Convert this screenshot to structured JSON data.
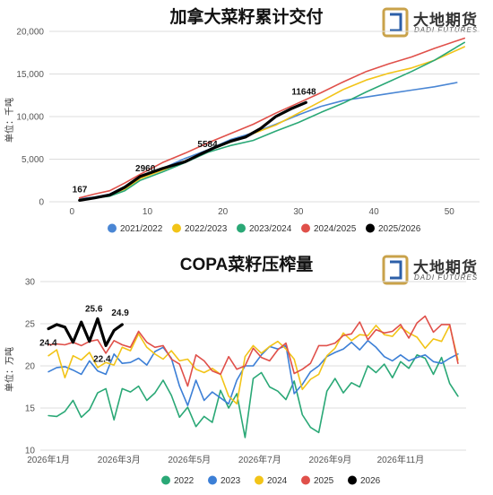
{
  "logo": {
    "name": "大地期货",
    "sub": "DADI FUTURES"
  },
  "chart_data": [
    {
      "id": "top",
      "type": "line",
      "title": "加拿大菜籽累计交付",
      "ylabel": "单位：千吨",
      "xlim": [
        -3,
        54
      ],
      "ylim": [
        0,
        20000
      ],
      "xticks": [
        0,
        10,
        20,
        30,
        40,
        50
      ],
      "yticks": [
        0,
        5000,
        10000,
        15000,
        20000
      ],
      "yticklabels": [
        "0",
        "5,000",
        "10,000",
        "15,000",
        "20,000"
      ],
      "grid": true,
      "legend_position": "bottom",
      "series": [
        {
          "name": "2021/2022",
          "color": "#4a86d4",
          "width": 1.6,
          "x": [
            1,
            3,
            5,
            7,
            9,
            12,
            15,
            18,
            21,
            24,
            27,
            30,
            33,
            36,
            39,
            42,
            45,
            48,
            51
          ],
          "y": [
            350,
            550,
            900,
            1800,
            2900,
            3900,
            5100,
            6100,
            7300,
            8100,
            9100,
            10200,
            11200,
            11900,
            12300,
            12700,
            13100,
            13500,
            14000
          ]
        },
        {
          "name": "2022/2023",
          "color": "#f2c418",
          "width": 1.6,
          "x": [
            1,
            3,
            5,
            7,
            9,
            12,
            15,
            18,
            21,
            24,
            27,
            30,
            33,
            36,
            39,
            42,
            45,
            48,
            52
          ],
          "y": [
            250,
            500,
            750,
            1500,
            2700,
            3700,
            4800,
            6000,
            7000,
            8000,
            9000,
            10400,
            11800,
            13200,
            14300,
            15100,
            15700,
            16600,
            18200
          ]
        },
        {
          "name": "2023/2024",
          "color": "#2aa876",
          "width": 1.6,
          "x": [
            1,
            3,
            5,
            7,
            9,
            12,
            15,
            18,
            21,
            24,
            27,
            30,
            33,
            36,
            39,
            42,
            45,
            48,
            52
          ],
          "y": [
            250,
            450,
            650,
            1300,
            2500,
            3500,
            4600,
            5800,
            6600,
            7200,
            8300,
            9300,
            10500,
            11600,
            12900,
            14100,
            15300,
            16600,
            18700
          ]
        },
        {
          "name": "2024/2025",
          "color": "#e0504a",
          "width": 1.6,
          "x": [
            1,
            3,
            5,
            7,
            9,
            12,
            15,
            18,
            21,
            24,
            27,
            30,
            33,
            36,
            39,
            42,
            45,
            48,
            52
          ],
          "y": [
            450,
            900,
            1300,
            2200,
            3200,
            4600,
            5700,
            6900,
            8000,
            9100,
            10400,
            11600,
            12800,
            14100,
            15300,
            16200,
            17000,
            18000,
            19200
          ]
        },
        {
          "name": "2025/2026",
          "color": "#000000",
          "width": 3.2,
          "x": [
            1,
            3,
            5,
            7,
            9,
            12,
            15,
            17,
            19,
            21,
            23,
            25,
            27,
            29,
            31
          ],
          "y": [
            167,
            450,
            800,
            1700,
            2960,
            3900,
            4700,
            5584,
            6400,
            7100,
            7600,
            8600,
            10000,
            10900,
            11648
          ]
        }
      ],
      "labels": [
        {
          "x": 1,
          "y": 167,
          "text": "167"
        },
        {
          "x": 9,
          "y": 2960,
          "text": "2960"
        },
        {
          "x": 17,
          "y": 5584,
          "text": "5584"
        },
        {
          "x": 31,
          "y": 11648,
          "text": "11648"
        }
      ]
    },
    {
      "id": "bottom",
      "type": "line",
      "title": "COPA菜籽压榨量",
      "ylabel": "单位：万吨",
      "xlim": [
        0,
        52
      ],
      "ylim": [
        10,
        30
      ],
      "xticks": [
        1,
        9.6,
        18.2,
        26.8,
        35.4,
        44
      ],
      "xticklabels": [
        "2026年1月",
        "2026年3月",
        "2026年5月",
        "2026年7月",
        "2026年9月",
        "2026年11月"
      ],
      "yticks": [
        10,
        15,
        20,
        25,
        30
      ],
      "yticklabels": [
        "10",
        "15",
        "20",
        "25",
        "30"
      ],
      "grid": true,
      "legend_position": "bottom",
      "series": [
        {
          "name": "2022",
          "color": "#2aa876",
          "width": 1.6,
          "x": [
            1,
            2,
            3,
            4,
            5,
            6,
            7,
            8,
            9,
            10,
            11,
            12,
            13,
            14,
            15,
            16,
            17,
            18,
            19,
            20,
            21,
            22,
            23,
            24,
            25,
            26,
            27,
            28,
            29,
            30,
            31,
            32,
            33,
            34,
            35,
            36,
            37,
            38,
            39,
            40,
            41,
            42,
            43,
            44,
            45,
            46,
            47,
            48,
            49,
            50,
            51
          ],
          "y": [
            14.1,
            14.0,
            14.6,
            15.9,
            13.9,
            14.8,
            16.8,
            17.3,
            13.6,
            17.3,
            16.9,
            17.6,
            15.9,
            16.8,
            18.3,
            16.5,
            13.9,
            15.1,
            12.8,
            14.0,
            13.3,
            17.1,
            15.0,
            16.7,
            11.5,
            18.5,
            19.2,
            17.5,
            17.0,
            16.0,
            18.2,
            14.2,
            12.7,
            12.1,
            17.0,
            18.5,
            16.8,
            18.0,
            17.5,
            20.0,
            19.2,
            20.2,
            18.6,
            20.5,
            19.7,
            21.3,
            20.9,
            19.0,
            21.0,
            17.9,
            16.4
          ]
        },
        {
          "name": "2023",
          "color": "#3c7fd6",
          "width": 1.6,
          "x": [
            1,
            2,
            3,
            4,
            5,
            6,
            7,
            8,
            9,
            10,
            11,
            12,
            13,
            14,
            15,
            16,
            17,
            18,
            19,
            20,
            21,
            22,
            23,
            24,
            25,
            26,
            27,
            28,
            29,
            30,
            31,
            32,
            33,
            34,
            35,
            36,
            37,
            38,
            39,
            40,
            41,
            42,
            43,
            44,
            45,
            46,
            47,
            48,
            49,
            50,
            51
          ],
          "y": [
            19.3,
            19.8,
            19.9,
            19.5,
            19.0,
            20.6,
            19.4,
            19.0,
            21.4,
            20.3,
            20.4,
            20.9,
            20.1,
            21.7,
            22.2,
            20.9,
            17.6,
            15.3,
            18.3,
            15.9,
            16.9,
            16.2,
            15.5,
            18.3,
            20.0,
            20.0,
            21.3,
            22.3,
            22.0,
            22.4,
            16.7,
            17.8,
            19.3,
            20.0,
            21.1,
            21.6,
            22.0,
            22.8,
            21.9,
            23.0,
            22.2,
            21.1,
            20.6,
            21.3,
            20.6,
            21.0,
            21.3,
            20.5,
            20.3,
            20.9,
            21.4
          ]
        },
        {
          "name": "2024",
          "color": "#f2c418",
          "width": 1.6,
          "x": [
            1,
            2,
            3,
            4,
            5,
            6,
            7,
            8,
            9,
            10,
            11,
            12,
            13,
            14,
            15,
            16,
            17,
            18,
            19,
            20,
            21,
            22,
            23,
            24,
            25,
            26,
            27,
            28,
            29,
            30,
            31,
            32,
            33,
            34,
            35,
            36,
            37,
            38,
            39,
            40,
            41,
            42,
            43,
            44,
            45,
            46,
            47,
            48,
            49,
            50,
            51
          ],
          "y": [
            21.2,
            21.9,
            18.6,
            21.2,
            20.7,
            21.6,
            19.8,
            20.4,
            20.1,
            22.2,
            21.8,
            23.8,
            22.2,
            21.4,
            20.8,
            21.8,
            20.6,
            20.8,
            19.6,
            19.2,
            19.7,
            19.0,
            16.4,
            15.5,
            21.1,
            22.4,
            21.5,
            22.3,
            22.9,
            22.0,
            20.8,
            17.2,
            18.4,
            19.0,
            21.2,
            22.1,
            23.9,
            23.0,
            23.7,
            23.6,
            24.8,
            23.7,
            23.5,
            24.6,
            23.9,
            23.4,
            22.1,
            23.2,
            22.9,
            24.8,
            20.7
          ]
        },
        {
          "name": "2025",
          "color": "#e0504a",
          "width": 1.6,
          "x": [
            1,
            2,
            3,
            4,
            5,
            6,
            7,
            8,
            9,
            10,
            11,
            12,
            13,
            14,
            15,
            16,
            17,
            18,
            19,
            20,
            21,
            22,
            23,
            24,
            25,
            26,
            27,
            28,
            29,
            30,
            31,
            32,
            33,
            34,
            35,
            36,
            37,
            38,
            39,
            40,
            41,
            42,
            43,
            44,
            45,
            46,
            47,
            48,
            49,
            50,
            51
          ],
          "y": [
            22.5,
            22.6,
            22.5,
            22.8,
            22.4,
            22.9,
            23.1,
            21.5,
            23.0,
            22.5,
            22.2,
            24.1,
            22.8,
            22.2,
            22.4,
            20.8,
            20.2,
            17.6,
            21.3,
            20.6,
            19.4,
            19.0,
            21.1,
            19.6,
            20.0,
            22.1,
            21.0,
            20.6,
            21.9,
            22.7,
            19.1,
            19.6,
            20.3,
            22.4,
            22.4,
            22.7,
            23.6,
            23.8,
            25.2,
            23.1,
            24.3,
            23.9,
            24.1,
            24.9,
            23.3,
            25.1,
            25.9,
            24.0,
            24.9,
            24.9,
            20.3
          ]
        },
        {
          "name": "2026",
          "color": "#000000",
          "width": 3.2,
          "x": [
            1,
            2,
            3,
            4,
            5,
            6,
            7,
            8,
            9,
            10
          ],
          "y": [
            24.4,
            24.9,
            24.6,
            22.8,
            25.2,
            22.9,
            25.6,
            22.4,
            24.2,
            24.9
          ]
        }
      ],
      "labels": [
        {
          "x": 1,
          "y": 24.4,
          "text": "24.4"
        },
        {
          "x": 7,
          "y": 25.6,
          "text": "25.6"
        },
        {
          "x": 8,
          "y": 22.4,
          "text": "22.4"
        },
        {
          "x": 10,
          "y": 24.9,
          "text": "24.9"
        }
      ]
    }
  ]
}
